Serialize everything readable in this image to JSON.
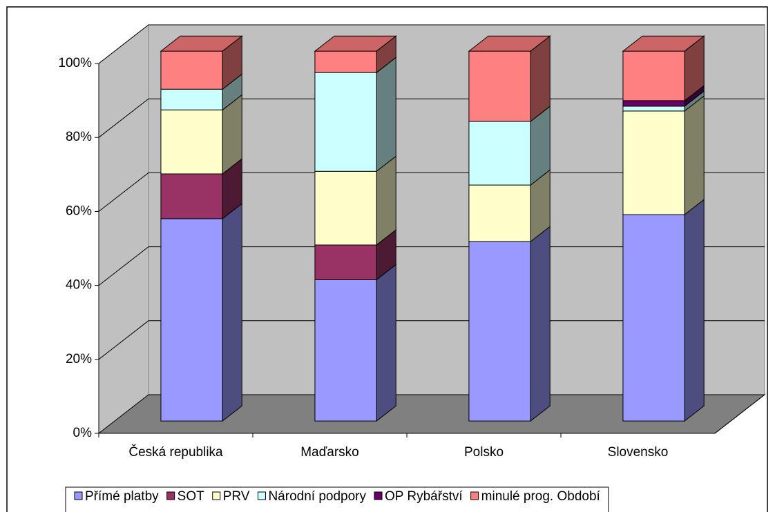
{
  "chart_data": {
    "type": "bar3d_stacked",
    "categories": [
      "Česká republika",
      "Maďarsko",
      "Polsko",
      "Slovensko"
    ],
    "series": [
      {
        "name": "Přímé platby",
        "color": "#9999ff",
        "values": [
          54.7,
          38.2,
          48.5,
          55.8
        ]
      },
      {
        "name": "SOT",
        "color": "#993366",
        "values": [
          12.1,
          9.4,
          0,
          0
        ]
      },
      {
        "name": "PRV",
        "color": "#ffffcc",
        "values": [
          17.3,
          19.9,
          15.3,
          28.0
        ]
      },
      {
        "name": "Národní podpory",
        "color": "#ccffff",
        "values": [
          5.6,
          26.7,
          17.2,
          1.3
        ]
      },
      {
        "name": "OP Rybářství",
        "color": "#660066",
        "values": [
          0,
          0,
          0,
          1.5
        ]
      },
      {
        "name": "minulé prog. Období",
        "color": "#ff8080",
        "values": [
          10.3,
          5.8,
          19.0,
          13.4
        ]
      }
    ],
    "ylim": [
      0,
      100
    ],
    "yticks": [
      {
        "value": 0,
        "label": "0%"
      },
      {
        "value": 20,
        "label": "20%"
      },
      {
        "value": 40,
        "label": "40%"
      },
      {
        "value": 60,
        "label": "60%"
      },
      {
        "value": 80,
        "label": "80%"
      },
      {
        "value": 100,
        "label": "100%"
      }
    ],
    "grid": true,
    "legend": "bottom"
  }
}
